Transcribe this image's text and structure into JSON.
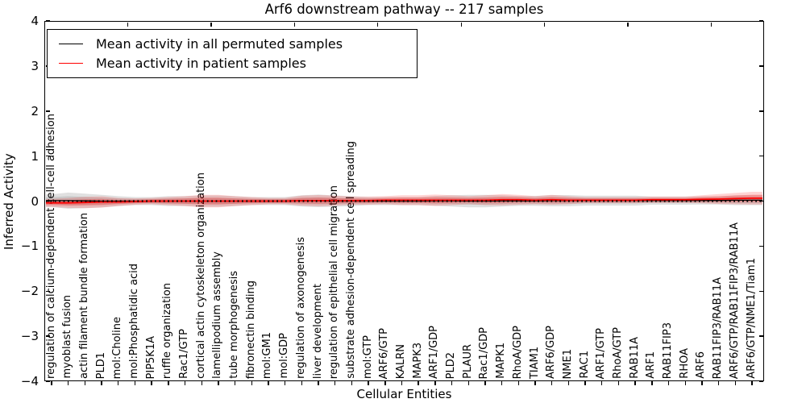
{
  "title": "Arf6 downstream pathway -- 217 samples",
  "xlabel": "Cellular Entities",
  "ylabel": "Inferred Activity",
  "yticks": [
    "4",
    "3",
    "2",
    "1",
    "0",
    "−1",
    "−2",
    "−3",
    "−4"
  ],
  "legend": [
    {
      "label": "Mean activity in all permuted samples",
      "color": "#000000"
    },
    {
      "label": "Mean activity in patient samples",
      "color": "#ff0000"
    }
  ],
  "colors": {
    "permuted_line": "#000000",
    "patient_line": "#ff0000",
    "permuted_band": "#000000",
    "patient_band": "#ff0000",
    "zero_line": "#000000"
  },
  "chart_data": {
    "type": "line",
    "title": "Arf6 downstream pathway -- 217 samples",
    "xlabel": "Cellular Entities",
    "ylabel": "Inferred Activity",
    "ylim": [
      -4,
      4
    ],
    "grid": false,
    "legend_position": "upper left",
    "zero_reference_line": 0,
    "categories": [
      "regulation of calcium-dependent cell-cell adhesion",
      "myoblast fusion",
      "actin filament bundle formation",
      "PLD1",
      "mol:Choline",
      "mol:Phosphatidic acid",
      "PIP5K1A",
      "ruffle organization",
      "Rac1/GTP",
      "cortical actin cytoskeleton organization",
      "lamellipodium assembly",
      "tube morphogenesis",
      "fibronectin binding",
      "mol:GM1",
      "mol:GDP",
      "regulation of axonogenesis",
      "liver development",
      "regulation of epithelial cell migration",
      "substrate adhesion-dependent cell spreading",
      "mol:GTP",
      "ARF6/GTP",
      "KALRN",
      "MAPK3",
      "ARF1/GDP",
      "PLD2",
      "PLAUR",
      "Rac1/GDP",
      "MAPK1",
      "RhoA/GDP",
      "TIAM1",
      "ARF6/GDP",
      "NME1",
      "RAC1",
      "ARF1/GTP",
      "RhoA/GTP",
      "RAB11A",
      "ARF1",
      "RAB11FIP3",
      "RHOA",
      "ARF6",
      "RAB11FIP3/RAB11A",
      "ARF6/GTP/RAB11FIP3/RAB11A",
      "ARF6/GTP/NME1/Tiam1"
    ],
    "series": [
      {
        "name": "Mean activity in all permuted samples",
        "color": "#000000",
        "values": [
          0.01,
          0.01,
          0.005,
          0.0,
          0.0,
          0.0,
          0.0,
          0.0,
          0.0,
          0.0,
          0.0,
          0.0,
          0.0,
          0.0,
          0.0,
          0.005,
          0.005,
          0.0,
          0.0,
          0.0,
          0.0,
          0.0,
          0.0,
          0.005,
          0.005,
          0.0,
          0.0,
          0.005,
          0.005,
          0.005,
          0.01,
          0.01,
          0.01,
          0.01,
          0.01,
          0.01,
          0.01,
          0.01,
          0.01,
          0.015,
          0.015,
          0.02,
          0.02
        ],
        "band_halfwidth": [
          0.14,
          0.18,
          0.16,
          0.14,
          0.11,
          0.09,
          0.09,
          0.11,
          0.11,
          0.125,
          0.125,
          0.11,
          0.09,
          0.09,
          0.09,
          0.125,
          0.14,
          0.125,
          0.11,
          0.09,
          0.09,
          0.09,
          0.09,
          0.11,
          0.125,
          0.14,
          0.14,
          0.125,
          0.11,
          0.11,
          0.125,
          0.125,
          0.11,
          0.11,
          0.11,
          0.11,
          0.09,
          0.09,
          0.09,
          0.09,
          0.09,
          0.11,
          0.11
        ]
      },
      {
        "name": "Mean activity in patient samples",
        "color": "#ff0000",
        "values": [
          -0.04,
          -0.04,
          -0.03,
          -0.02,
          -0.02,
          -0.01,
          0.0,
          0.0,
          0.0,
          0.0,
          0.0,
          0.0,
          0.0,
          0.0,
          0.0,
          0.01,
          0.01,
          0.01,
          0.01,
          0.01,
          0.02,
          0.02,
          0.02,
          0.02,
          0.02,
          0.02,
          0.02,
          0.03,
          0.03,
          0.02,
          0.03,
          0.02,
          0.02,
          0.02,
          0.02,
          0.02,
          0.03,
          0.03,
          0.03,
          0.04,
          0.045,
          0.055,
          0.065
        ],
        "band_halfwidth": [
          0.09,
          0.11,
          0.125,
          0.125,
          0.09,
          0.07,
          0.07,
          0.09,
          0.11,
          0.14,
          0.14,
          0.11,
          0.09,
          0.07,
          0.07,
          0.11,
          0.125,
          0.11,
          0.09,
          0.09,
          0.09,
          0.11,
          0.11,
          0.125,
          0.11,
          0.09,
          0.11,
          0.125,
          0.11,
          0.09,
          0.11,
          0.09,
          0.07,
          0.07,
          0.07,
          0.07,
          0.07,
          0.07,
          0.07,
          0.09,
          0.11,
          0.125,
          0.14
        ]
      }
    ]
  }
}
